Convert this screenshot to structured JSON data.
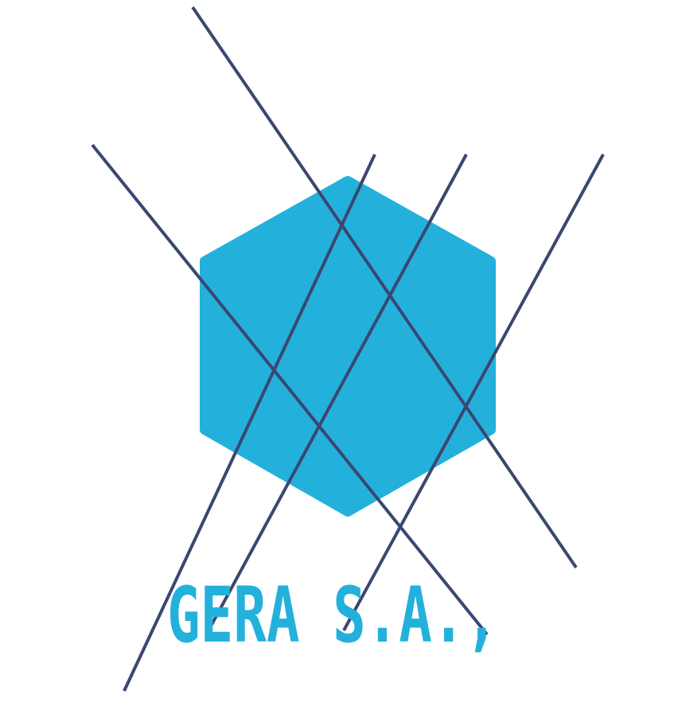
{
  "brand": {
    "name": "GERA S.A.,",
    "hexagon_color": "#23b1dc",
    "line_color": "#3a4770",
    "text_color": "#23b1dc",
    "background_color": "#ffffff"
  },
  "icons": {
    "logo_mark": "hexagon-with-crossing-lines-icon"
  }
}
